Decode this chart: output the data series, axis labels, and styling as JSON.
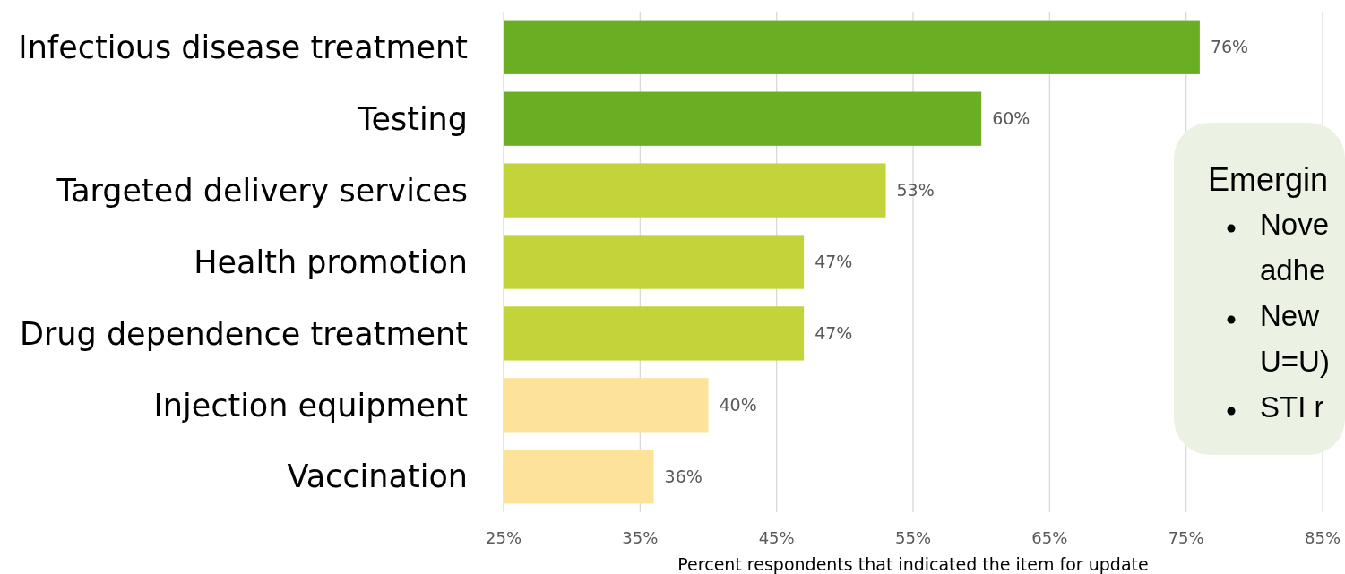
{
  "chart_data": {
    "type": "bar",
    "orientation": "horizontal",
    "xlabel": "Percent respondents that indicated the item for update",
    "categories": [
      "Infectious disease treatment",
      "Testing",
      "Targeted delivery services",
      "Health promotion",
      "Drug dependence treatment",
      "Injection equipment",
      "Vaccination"
    ],
    "values": [
      76,
      60,
      53,
      47,
      47,
      40,
      36
    ],
    "value_labels": [
      "76%",
      "60%",
      "53%",
      "47%",
      "47%",
      "40%",
      "36%"
    ],
    "colors": [
      "#6aaf23",
      "#6aaf23",
      "#c3d43a",
      "#c3d43a",
      "#c3d43a",
      "#fde39a",
      "#fde39a"
    ],
    "xlim": [
      25,
      85
    ],
    "xticks": [
      {
        "value": 25,
        "label": "25%"
      },
      {
        "value": 35,
        "label": "35%"
      },
      {
        "value": 45,
        "label": "45%"
      },
      {
        "value": 55,
        "label": "55%"
      },
      {
        "value": 65,
        "label": "65%"
      },
      {
        "value": 75,
        "label": "75%"
      },
      {
        "value": 85,
        "label": "85%"
      }
    ],
    "grid": "x",
    "annotations": [
      "Emergin",
      "Nove\nadhe",
      "New\nU=U)",
      "STI r"
    ]
  }
}
